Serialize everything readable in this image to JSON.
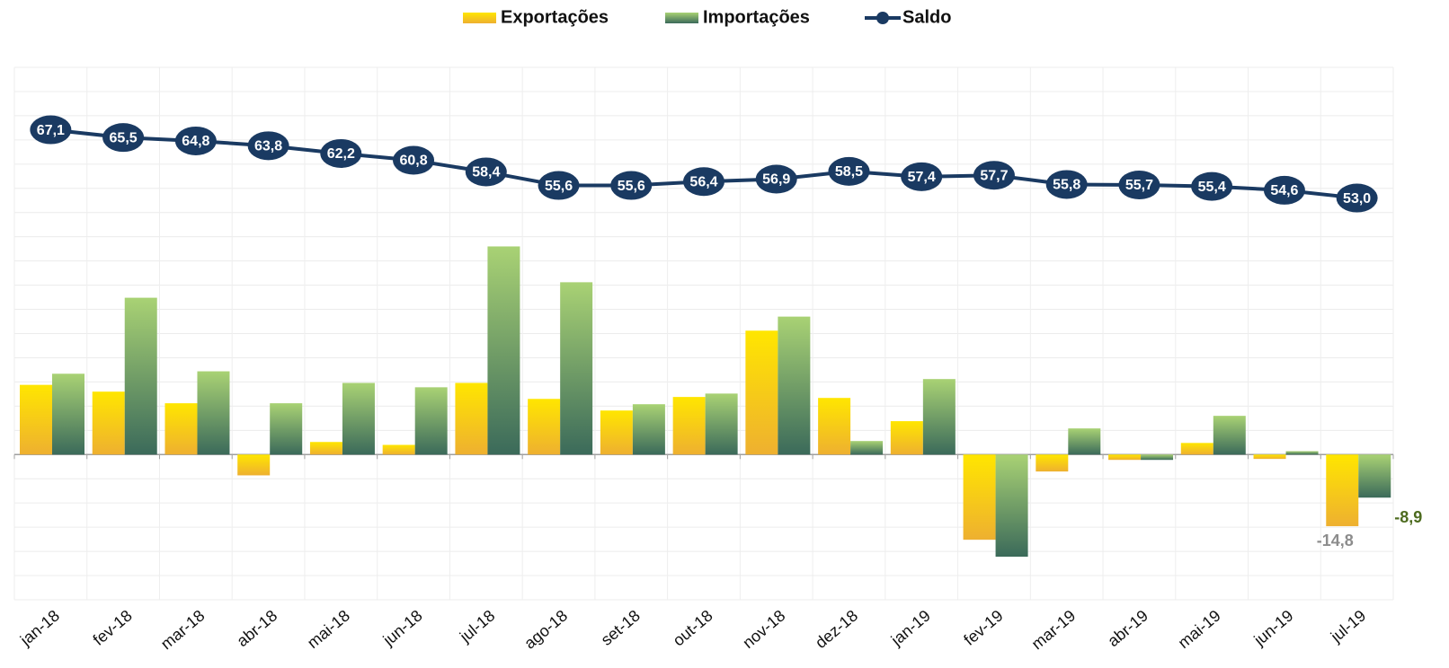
{
  "chart_data": {
    "type": "bar_line",
    "categories": [
      "jan-18",
      "fev-18",
      "mar-18",
      "abr-18",
      "mai-18",
      "jun-18",
      "jul-18",
      "ago-18",
      "set-18",
      "out-18",
      "nov-18",
      "dez-18",
      "jan-19",
      "fev-19",
      "mar-19",
      "abr-19",
      "mai-19",
      "jun-19",
      "jul-19"
    ],
    "series": [
      {
        "name": "Exportações",
        "type": "bar",
        "color": "#f5c518",
        "values": [
          14.4,
          13.0,
          10.6,
          -4.3,
          2.6,
          2.0,
          14.8,
          11.5,
          9.1,
          11.9,
          25.6,
          11.7,
          6.9,
          -17.6,
          -3.5,
          -1.1,
          2.4,
          -0.9,
          -14.8
        ],
        "value_labels": [
          null,
          null,
          null,
          null,
          null,
          null,
          null,
          null,
          null,
          null,
          null,
          null,
          null,
          null,
          null,
          null,
          null,
          null,
          "-14,8"
        ]
      },
      {
        "name": "Importações",
        "type": "bar",
        "color": "#6e9a62",
        "values": [
          16.7,
          32.4,
          17.2,
          10.6,
          14.8,
          13.9,
          43.0,
          35.6,
          10.4,
          12.6,
          28.5,
          2.8,
          15.6,
          -21.1,
          5.4,
          -1.1,
          8.0,
          0.7,
          -8.9
        ],
        "value_labels": [
          null,
          null,
          null,
          null,
          null,
          null,
          null,
          null,
          null,
          null,
          null,
          null,
          null,
          null,
          null,
          null,
          null,
          null,
          "-8,9"
        ]
      },
      {
        "name": "Saldo",
        "type": "line",
        "color": "#1a3a62",
        "values": [
          67.1,
          65.5,
          64.8,
          63.8,
          62.2,
          60.8,
          58.4,
          55.6,
          55.6,
          56.4,
          56.9,
          58.5,
          57.4,
          57.7,
          55.8,
          55.7,
          55.4,
          54.6,
          53.0
        ],
        "value_labels": [
          "67,1",
          "65,5",
          "64,8",
          "63,8",
          "62,2",
          "60,8",
          "58,4",
          "55,6",
          "55,6",
          "56,4",
          "56,9",
          "58,5",
          "57,4",
          "57,7",
          "55,8",
          "55,7",
          "55,4",
          "54,6",
          "53,0"
        ]
      }
    ],
    "ylim": [
      -30,
      80
    ],
    "yticks": [
      -30,
      -25,
      -20,
      -15,
      -10,
      -5,
      0,
      5,
      10,
      15,
      20,
      25,
      30,
      35,
      40,
      45,
      50,
      55,
      60,
      65,
      70,
      75,
      80
    ],
    "grid": true,
    "legend": "top"
  }
}
